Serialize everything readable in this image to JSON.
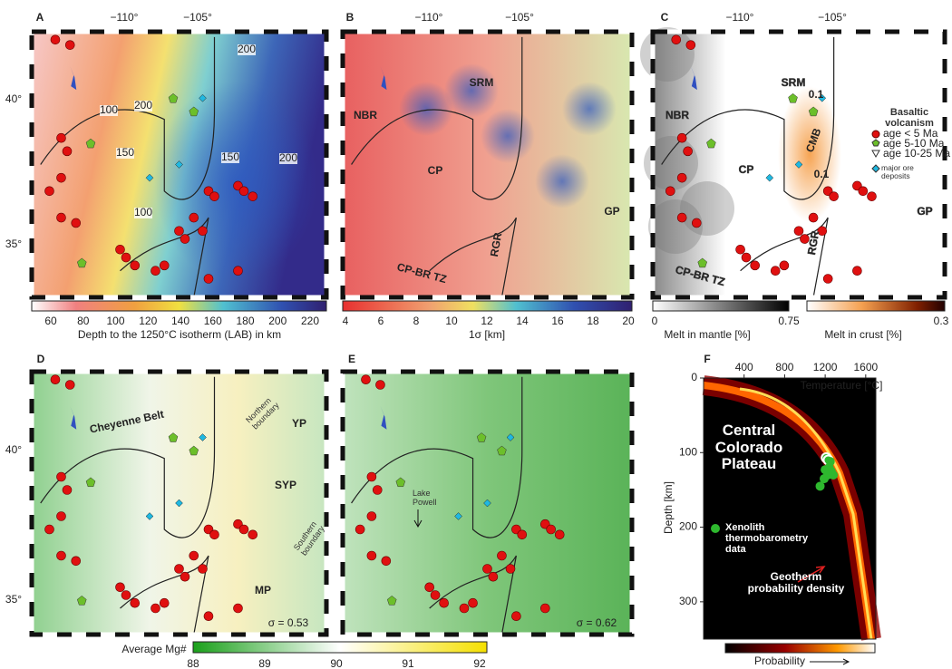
{
  "panels": {
    "A": {
      "letter": "A",
      "lon_ticks": [
        "−110°",
        "−105°"
      ],
      "lat_ticks": [
        "40°",
        "35°"
      ],
      "contours": [
        "200",
        "100",
        "200",
        "150",
        "150",
        "200",
        "100"
      ],
      "colorbar": {
        "ticks": [
          "60",
          "80",
          "100",
          "120",
          "140",
          "160",
          "180",
          "200",
          "220"
        ],
        "label": "Depth to the 1250°C isotherm (LAB) in km"
      }
    },
    "B": {
      "letter": "B",
      "lon_ticks": [
        "−110°",
        "−105°"
      ],
      "labels": [
        "NBR",
        "SRM",
        "CP",
        "GP",
        "RGR",
        "CP-BR TZ"
      ],
      "colorbar": {
        "ticks": [
          "4",
          "6",
          "8",
          "10",
          "12",
          "14",
          "16",
          "18",
          "20"
        ],
        "label": "1σ [km]"
      }
    },
    "C": {
      "letter": "C",
      "lon_ticks": [
        "−110°",
        "−105°"
      ],
      "labels": [
        "SRM",
        "NBR",
        "CP",
        "GP",
        "RGR",
        "CP-BR TZ",
        "CMB",
        "0.1",
        "0.1"
      ],
      "legend_title": "Basaltic volcanism",
      "legend": [
        "age < 5 Ma",
        "age 5-10 Ma",
        "age 10-25 Ma",
        "major ore deposits"
      ],
      "mantle_colorbar": {
        "ticks": [
          "0",
          "0.75"
        ],
        "label": "Melt in mantle [%]"
      },
      "crust_colorbar": {
        "ticks": [
          "0.3"
        ],
        "label": "Melt in crust [%]"
      }
    },
    "D": {
      "letter": "D",
      "lat_ticks": [
        "40°",
        "35°"
      ],
      "labels": [
        "Cheyenne Belt",
        "Northern boundary",
        "YP",
        "SYP",
        "Southern boundary",
        "MP"
      ],
      "sigma": "σ = 0.53"
    },
    "E": {
      "letter": "E",
      "labels": [
        "Lake Powell"
      ],
      "sigma": "σ = 0.62"
    },
    "DE_colorbar": {
      "label": "Average Mg#",
      "ticks": [
        "88",
        "89",
        "90",
        "91",
        "92"
      ]
    },
    "F": {
      "letter": "F",
      "annotation": "Central Colorado Plateau",
      "geotherm_label": "Geotherm probability density",
      "colorbar_label": "Probability"
    }
  },
  "chart_data": {
    "type": "scatter",
    "x_label": "Temperature [°C]",
    "y_label": "Depth [km]",
    "xlim": [
      0,
      1700
    ],
    "ylim": [
      0,
      350
    ],
    "xticks": [
      400,
      800,
      1200,
      1600
    ],
    "yticks": [
      0,
      100,
      200,
      300
    ],
    "series": [
      {
        "name": "Xenolith thermobarometry data",
        "color": "#2eb82e",
        "x": [
          1210,
          1230,
          1250,
          1240,
          1200,
          1260,
          1280,
          1225,
          1190,
          1150
        ],
        "values": [
          107,
          110,
          112,
          120,
          123,
          125,
          130,
          130,
          135,
          145
        ]
      }
    ]
  }
}
